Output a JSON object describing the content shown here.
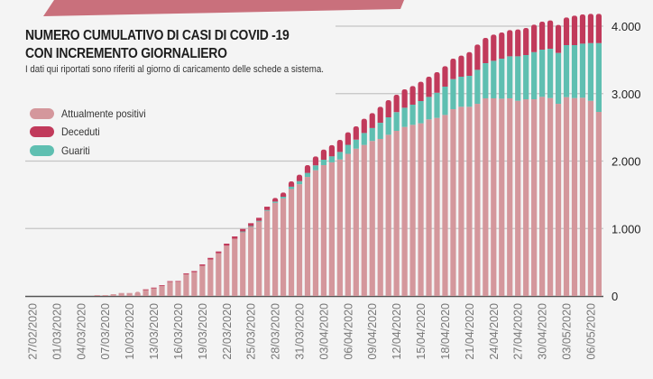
{
  "title_line1": "NUMERO CUMULATIVO DI CASI DI COVID -19",
  "title_line2": "CON INCREMENTO GIORNALIERO",
  "subtitle": "I dati qui riportati sono riferiti al giorno di caricamento delle schede a sistema.",
  "colors": {
    "banner": "#c9707c",
    "positivi": "#d4979c",
    "deceduti": "#c13a5b",
    "guariti": "#5fbfb1"
  },
  "chart_data": {
    "type": "bar",
    "stacked": true,
    "title": "NUMERO CUMULATIVO DI CASI DI COVID -19 CON INCREMENTO GIORNALIERO",
    "x_tick_labels": [
      "27/02/2020",
      "01/03/2020",
      "04/03/2020",
      "07/03/2020",
      "10/03/2020",
      "13/03/2020",
      "16/03/2020",
      "19/03/2020",
      "22/03/2020",
      "25/03/2020",
      "28/03/2020",
      "31/03/2020",
      "03/04/2020",
      "06/04/2020",
      "09/04/2020",
      "12/04/2020",
      "15/04/2020",
      "18/04/2020",
      "21/04/2020",
      "24/04/2020",
      "27/04/2020",
      "30/04/2020",
      "03/05/2020",
      "06/05/2020"
    ],
    "x_tick_every_days": 3,
    "y_ticks": [
      "0",
      "1.000",
      "2.000",
      "3.000",
      "4.000"
    ],
    "ylim": [
      0,
      4000
    ],
    "grid": true,
    "legend_position": "top-left",
    "series": [
      {
        "name": "Attualmente positivi",
        "color": "#d4979c",
        "values": [
          0,
          0,
          0,
          0,
          0,
          0,
          0,
          0,
          13,
          13,
          26,
          44,
          44,
          62,
          96,
          121,
          155,
          212,
          212,
          321,
          353,
          448,
          541,
          633,
          746,
          849,
          953,
          1032,
          1106,
          1262,
          1381,
          1447,
          1586,
          1657,
          1765,
          1864,
          1940,
          1981,
          2024,
          2107,
          2184,
          2239,
          2298,
          2328,
          2390,
          2448,
          2506,
          2537,
          2560,
          2618,
          2640,
          2684,
          2769,
          2805,
          2805,
          2849,
          2930,
          2930,
          2925,
          2930,
          2894,
          2916,
          2916,
          2952,
          2934,
          2849,
          2948,
          2934,
          2939,
          2894,
          2729
        ]
      },
      {
        "name": "Deceduti",
        "color": "#c13a5b",
        "values": [
          0,
          0,
          0,
          0,
          0,
          0,
          0,
          0,
          0,
          0,
          0,
          0,
          0,
          0,
          2,
          3,
          5,
          8,
          10,
          14,
          17,
          20,
          24,
          27,
          30,
          34,
          38,
          42,
          45,
          50,
          55,
          62,
          78,
          95,
          115,
          133,
          150,
          165,
          180,
          185,
          198,
          210,
          220,
          237,
          254,
          258,
          272,
          276,
          285,
          299,
          304,
          303,
          303,
          312,
          352,
          375,
          375,
          388,
          388,
          388,
          397,
          401,
          406,
          415,
          420,
          415,
          410,
          437,
          433,
          433,
          433
        ]
      },
      {
        "name": "Guariti",
        "color": "#5fbfb1",
        "values": [
          0,
          0,
          0,
          0,
          0,
          0,
          0,
          0,
          0,
          0,
          0,
          0,
          0,
          0,
          0,
          0,
          0,
          0,
          0,
          0,
          0,
          0,
          0,
          0,
          0,
          0,
          3,
          5,
          8,
          12,
          18,
          25,
          35,
          45,
          60,
          72,
          80,
          90,
          111,
          134,
          133,
          178,
          192,
          240,
          259,
          277,
          285,
          299,
          330,
          334,
          374,
          420,
          446,
          446,
          459,
          504,
          521,
          557,
          593,
          624,
          660,
          656,
          700,
          700,
          731,
          754,
          771,
          785,
          802,
          856,
          1021
        ]
      }
    ]
  }
}
